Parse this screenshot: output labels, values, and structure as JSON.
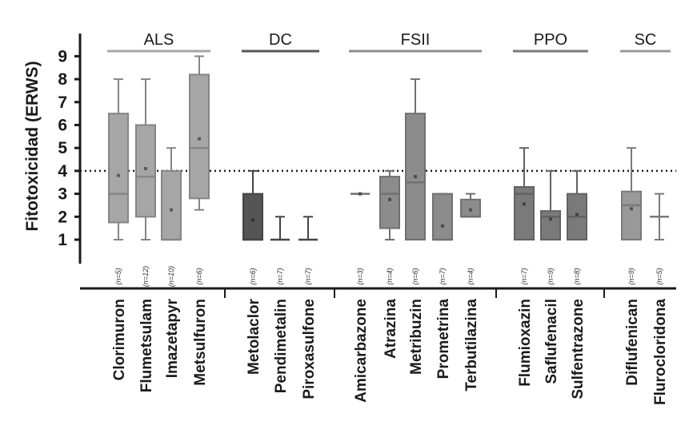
{
  "chart_data": {
    "type": "box",
    "title": "",
    "ylabel": "Fitotoxicidad (ERWS)",
    "xlabel": "",
    "ylim": [
      0,
      9
    ],
    "yticks": [
      1,
      2,
      3,
      4,
      5,
      6,
      7,
      8,
      9
    ],
    "reference_line": 4,
    "groups": [
      {
        "name": "ALS",
        "color": "#a6a6a6",
        "members": [
          "Clorimuron",
          "Flumetsulam",
          "Imazetapyr",
          "Metsulfuron"
        ]
      },
      {
        "name": "DC",
        "color": "#555555",
        "members": [
          "Metolaclor",
          "Pendimetalin",
          "Piroxasulfone"
        ]
      },
      {
        "name": "FSII",
        "color": "#8c8c8c",
        "members": [
          "Amicarbazone",
          "Atrazina",
          "Metribuzin",
          "Prometrina",
          "Terbutilazina"
        ]
      },
      {
        "name": "PPO",
        "color": "#7a7a7a",
        "members": [
          "Flumioxazin",
          "Saflufenacil",
          "Sulfentrazone"
        ]
      },
      {
        "name": "SC",
        "color": "#999999",
        "members": [
          "Diflufenican",
          "Flurocloridona"
        ]
      }
    ],
    "boxes": [
      {
        "name": "Clorimuron",
        "n": "(n=5)",
        "min": 1,
        "q1": 1.75,
        "median": 3,
        "q3": 6.5,
        "max": 8,
        "mean": 3.8
      },
      {
        "name": "Flumetsulam",
        "n": "(n=12)",
        "min": 1,
        "q1": 2,
        "median": 3.75,
        "q3": 6,
        "max": 8,
        "mean": 4.1
      },
      {
        "name": "Imazetapyr",
        "n": "(n=10)",
        "min": 1,
        "q1": 1,
        "median": 1,
        "q3": 4,
        "max": 5,
        "mean": 2.3
      },
      {
        "name": "Metsulfuron",
        "n": "(n=6)",
        "min": 2.3,
        "q1": 2.8,
        "median": 5,
        "q3": 8.2,
        "max": 9,
        "mean": 5.4
      },
      {
        "name": "Metolaclor",
        "n": "(n=6)",
        "min": 1,
        "q1": 1,
        "median": 1,
        "q3": 3,
        "max": 4,
        "mean": 1.85
      },
      {
        "name": "Pendimetalin",
        "n": "(n=7)",
        "min": 1,
        "q1": 1,
        "median": 1,
        "q3": 1,
        "max": 2,
        "mean": null
      },
      {
        "name": "Piroxasulfone",
        "n": "(n=7)",
        "min": 1,
        "q1": 1,
        "median": 1,
        "q3": 1,
        "max": 2,
        "mean": null
      },
      {
        "name": "Amicarbazone",
        "n": "(n=3)",
        "min": 3,
        "q1": 3,
        "median": 3,
        "q3": 3,
        "max": 3,
        "mean": 3
      },
      {
        "name": "Atrazina",
        "n": "(n=4)",
        "min": 1,
        "q1": 1.5,
        "median": 3,
        "q3": 3.75,
        "max": 4,
        "mean": 2.75
      },
      {
        "name": "Metribuzin",
        "n": "(n=6)",
        "min": 1,
        "q1": 1,
        "median": 3.5,
        "q3": 6.5,
        "max": 8,
        "mean": 3.75
      },
      {
        "name": "Prometrina",
        "n": "(n=7)",
        "min": 1,
        "q1": 1,
        "median": 1,
        "q3": 3,
        "max": 3,
        "mean": 1.6
      },
      {
        "name": "Terbutilazina",
        "n": "(n=4)",
        "min": 2,
        "q1": 2,
        "median": 2,
        "q3": 2.75,
        "max": 3,
        "mean": 2.3
      },
      {
        "name": "Flumioxazin",
        "n": "(n=7)",
        "min": 1,
        "q1": 1,
        "median": 3,
        "q3": 3.3,
        "max": 5,
        "mean": 2.55
      },
      {
        "name": "Saflufenacil",
        "n": "(n=9)",
        "min": 1,
        "q1": 1,
        "median": 2,
        "q3": 2.25,
        "max": 4,
        "mean": 1.9
      },
      {
        "name": "Sulfentrazone",
        "n": "(n=8)",
        "min": 1,
        "q1": 1,
        "median": 2,
        "q3": 3,
        "max": 4,
        "mean": 2.1
      },
      {
        "name": "Diflufenican",
        "n": "(n=9)",
        "min": 1,
        "q1": 1,
        "median": 2.5,
        "q3": 3.1,
        "max": 5,
        "mean": 2.35
      },
      {
        "name": "Flurocloridona",
        "n": "(n=5)",
        "min": 1,
        "q1": 2,
        "median": 2,
        "q3": 2,
        "max": 3,
        "mean": null
      }
    ]
  }
}
